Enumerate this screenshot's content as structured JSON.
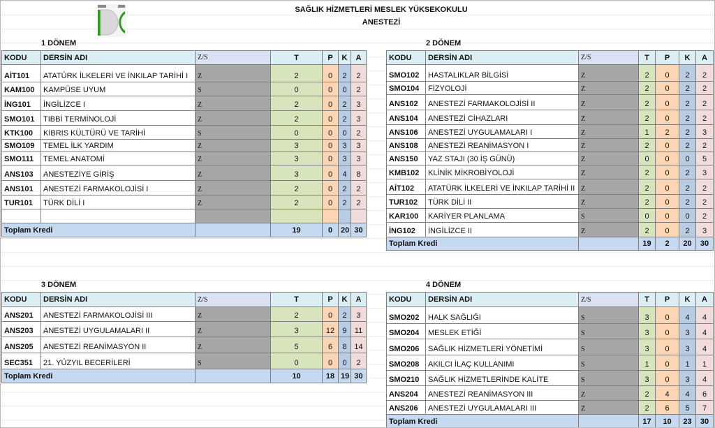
{
  "header": {
    "school": "SAĞLIK HİZMETLERİ MESLEK YÜKSEKOKULU",
    "program": "ANESTEZİ"
  },
  "columns": {
    "code": "KODU",
    "name": "DERSİN ADI",
    "zs": "Z/S",
    "t": "T",
    "p": "P",
    "k": "K",
    "a": "A"
  },
  "total_label": "Toplam Kredi",
  "colors": {
    "header": "#daeef3",
    "zs": "#a6a6a6",
    "t": "#d8e4bc",
    "p": "#fcd5b4",
    "k": "#b8cce4",
    "a": "#f2dcdb",
    "total": "#c5d9f1"
  },
  "semesters": [
    {
      "title": "1 DÖNEM",
      "courses": [
        [
          "AİT101",
          "ATATÜRK İLKELERİ VE İNKILAP TARİHİ I",
          "Z",
          "2",
          "0",
          "2",
          "2"
        ],
        [
          "KAM100",
          "KAMPÜSE UYUM",
          "S",
          "0",
          "0",
          "0",
          "2"
        ],
        [
          "İNG101",
          "İNGİLİZCE I",
          "Z",
          "2",
          "0",
          "2",
          "3"
        ],
        [
          "SMO101",
          "TIBBİ TERMİNOLOJİ",
          "Z",
          "2",
          "0",
          "2",
          "3"
        ],
        [
          "KTK100",
          "KIBRIS KÜLTÜRÜ VE TARİHİ",
          "S",
          "0",
          "0",
          "0",
          "2"
        ],
        [
          "SMO109",
          "TEMEL İLK YARDIM",
          "Z",
          "3",
          "0",
          "3",
          "3"
        ],
        [
          "SMO111",
          "TEMEL ANATOMİ",
          "Z",
          "3",
          "0",
          "3",
          "3"
        ],
        [
          "ANS103",
          "ANESTEZİYE GİRİŞ",
          "Z",
          "3",
          "0",
          "4",
          "8"
        ],
        [
          "ANS101",
          "ANESTEZİ FARMAKOLOJİSİ I",
          "Z",
          "2",
          "0",
          "2",
          "2"
        ],
        [
          "TUR101",
          "TÜRK DİLİ I",
          "Z",
          "2",
          "0",
          "2",
          "2"
        ],
        [
          "",
          "",
          "",
          "",
          "",
          "",
          ""
        ]
      ],
      "totals": [
        "19",
        "0",
        "20",
        "30"
      ]
    },
    {
      "title": "2 DÖNEM",
      "courses": [
        [
          "SMO102",
          "HASTALIKLAR BİLGİSİ",
          "Z",
          "2",
          "0",
          "2",
          "2"
        ],
        [
          "SMO104",
          "FİZYOLOJİ",
          "Z",
          "2",
          "0",
          "2",
          "2"
        ],
        [
          "ANS102",
          "ANESTEZİ FARMAKOLOJİSİ II",
          "Z",
          "2",
          "0",
          "2",
          "2"
        ],
        [
          "ANS104",
          "ANESTEZİ CİHAZLARI",
          "Z",
          "2",
          "0",
          "2",
          "2"
        ],
        [
          "ANS106",
          "ANESTEZİ UYGULAMALARI I",
          "Z",
          "1",
          "2",
          "2",
          "3"
        ],
        [
          "ANS108",
          "ANESTEZİ REANİMASYON I",
          "Z",
          "2",
          "0",
          "2",
          "2"
        ],
        [
          "ANS150",
          "YAZ STAJI (30 İŞ GÜNÜ)",
          "Z",
          "0",
          "0",
          "0",
          "5"
        ],
        [
          "KMB102",
          "KLİNİK MİKROBİYOLOJİ",
          "Z",
          "2",
          "0",
          "2",
          "3"
        ],
        [
          "AİT102",
          "ATATÜRK İLKELERİ VE İNKILAP TARİHİ II",
          "Z",
          "2",
          "0",
          "2",
          "2"
        ],
        [
          "TUR102",
          "TÜRK DİLİ II",
          "Z",
          "2",
          "0",
          "2",
          "2"
        ],
        [
          "KAR100",
          "KARİYER PLANLAMA",
          "S",
          "0",
          "0",
          "0",
          "2"
        ],
        [
          "İNG102",
          "İNGİLİZCE II",
          "Z",
          "2",
          "0",
          "2",
          "3"
        ]
      ],
      "totals": [
        "19",
        "2",
        "20",
        "30"
      ]
    },
    {
      "title": "3 DÖNEM",
      "courses": [
        [
          "ANS201",
          "ANESTEZİ FARMAKOLOJİSİ III",
          "Z",
          "2",
          "0",
          "2",
          "3"
        ],
        [
          "ANS203",
          "ANESTEZİ UYGULAMALARI II",
          "Z",
          "3",
          "12",
          "9",
          "11"
        ],
        [
          "ANS205",
          "ANESTEZİ REANİMASYON II",
          "Z",
          "5",
          "6",
          "8",
          "14"
        ],
        [
          "SEC351",
          "21. YÜZYIL BECERİLERİ",
          "S",
          "0",
          "0",
          "0",
          "2"
        ]
      ],
      "totals": [
        "10",
        "18",
        "19",
        "30"
      ]
    },
    {
      "title": "4 DÖNEM",
      "courses": [
        [
          "SMO202",
          "HALK SAĞLIĞI",
          "S",
          "3",
          "0",
          "4",
          "4"
        ],
        [
          "SMO204",
          "MESLEK ETİĞİ",
          "S",
          "3",
          "0",
          "3",
          "4"
        ],
        [
          "SMO206",
          "SAĞLIK HİZMETLERİ YÖNETİMİ",
          "S",
          "3",
          "0",
          "3",
          "4"
        ],
        [
          "SMO208",
          "AKILCI İLAÇ KULLANIMI",
          "S",
          "1",
          "0",
          "1",
          "1"
        ],
        [
          "SMO210",
          "SAĞLIK HİZMETLERİNDE KALİTE",
          "S",
          "3",
          "0",
          "3",
          "4"
        ],
        [
          "ANS204",
          "ANESTEZİ REANİMASYON III",
          "Z",
          "2",
          "4",
          "4",
          "6"
        ],
        [
          "ANS206",
          "ANESTEZİ UYGULAMALARI III",
          "Z",
          "2",
          "6",
          "5",
          "7"
        ]
      ],
      "totals": [
        "17",
        "10",
        "23",
        "30"
      ]
    }
  ]
}
